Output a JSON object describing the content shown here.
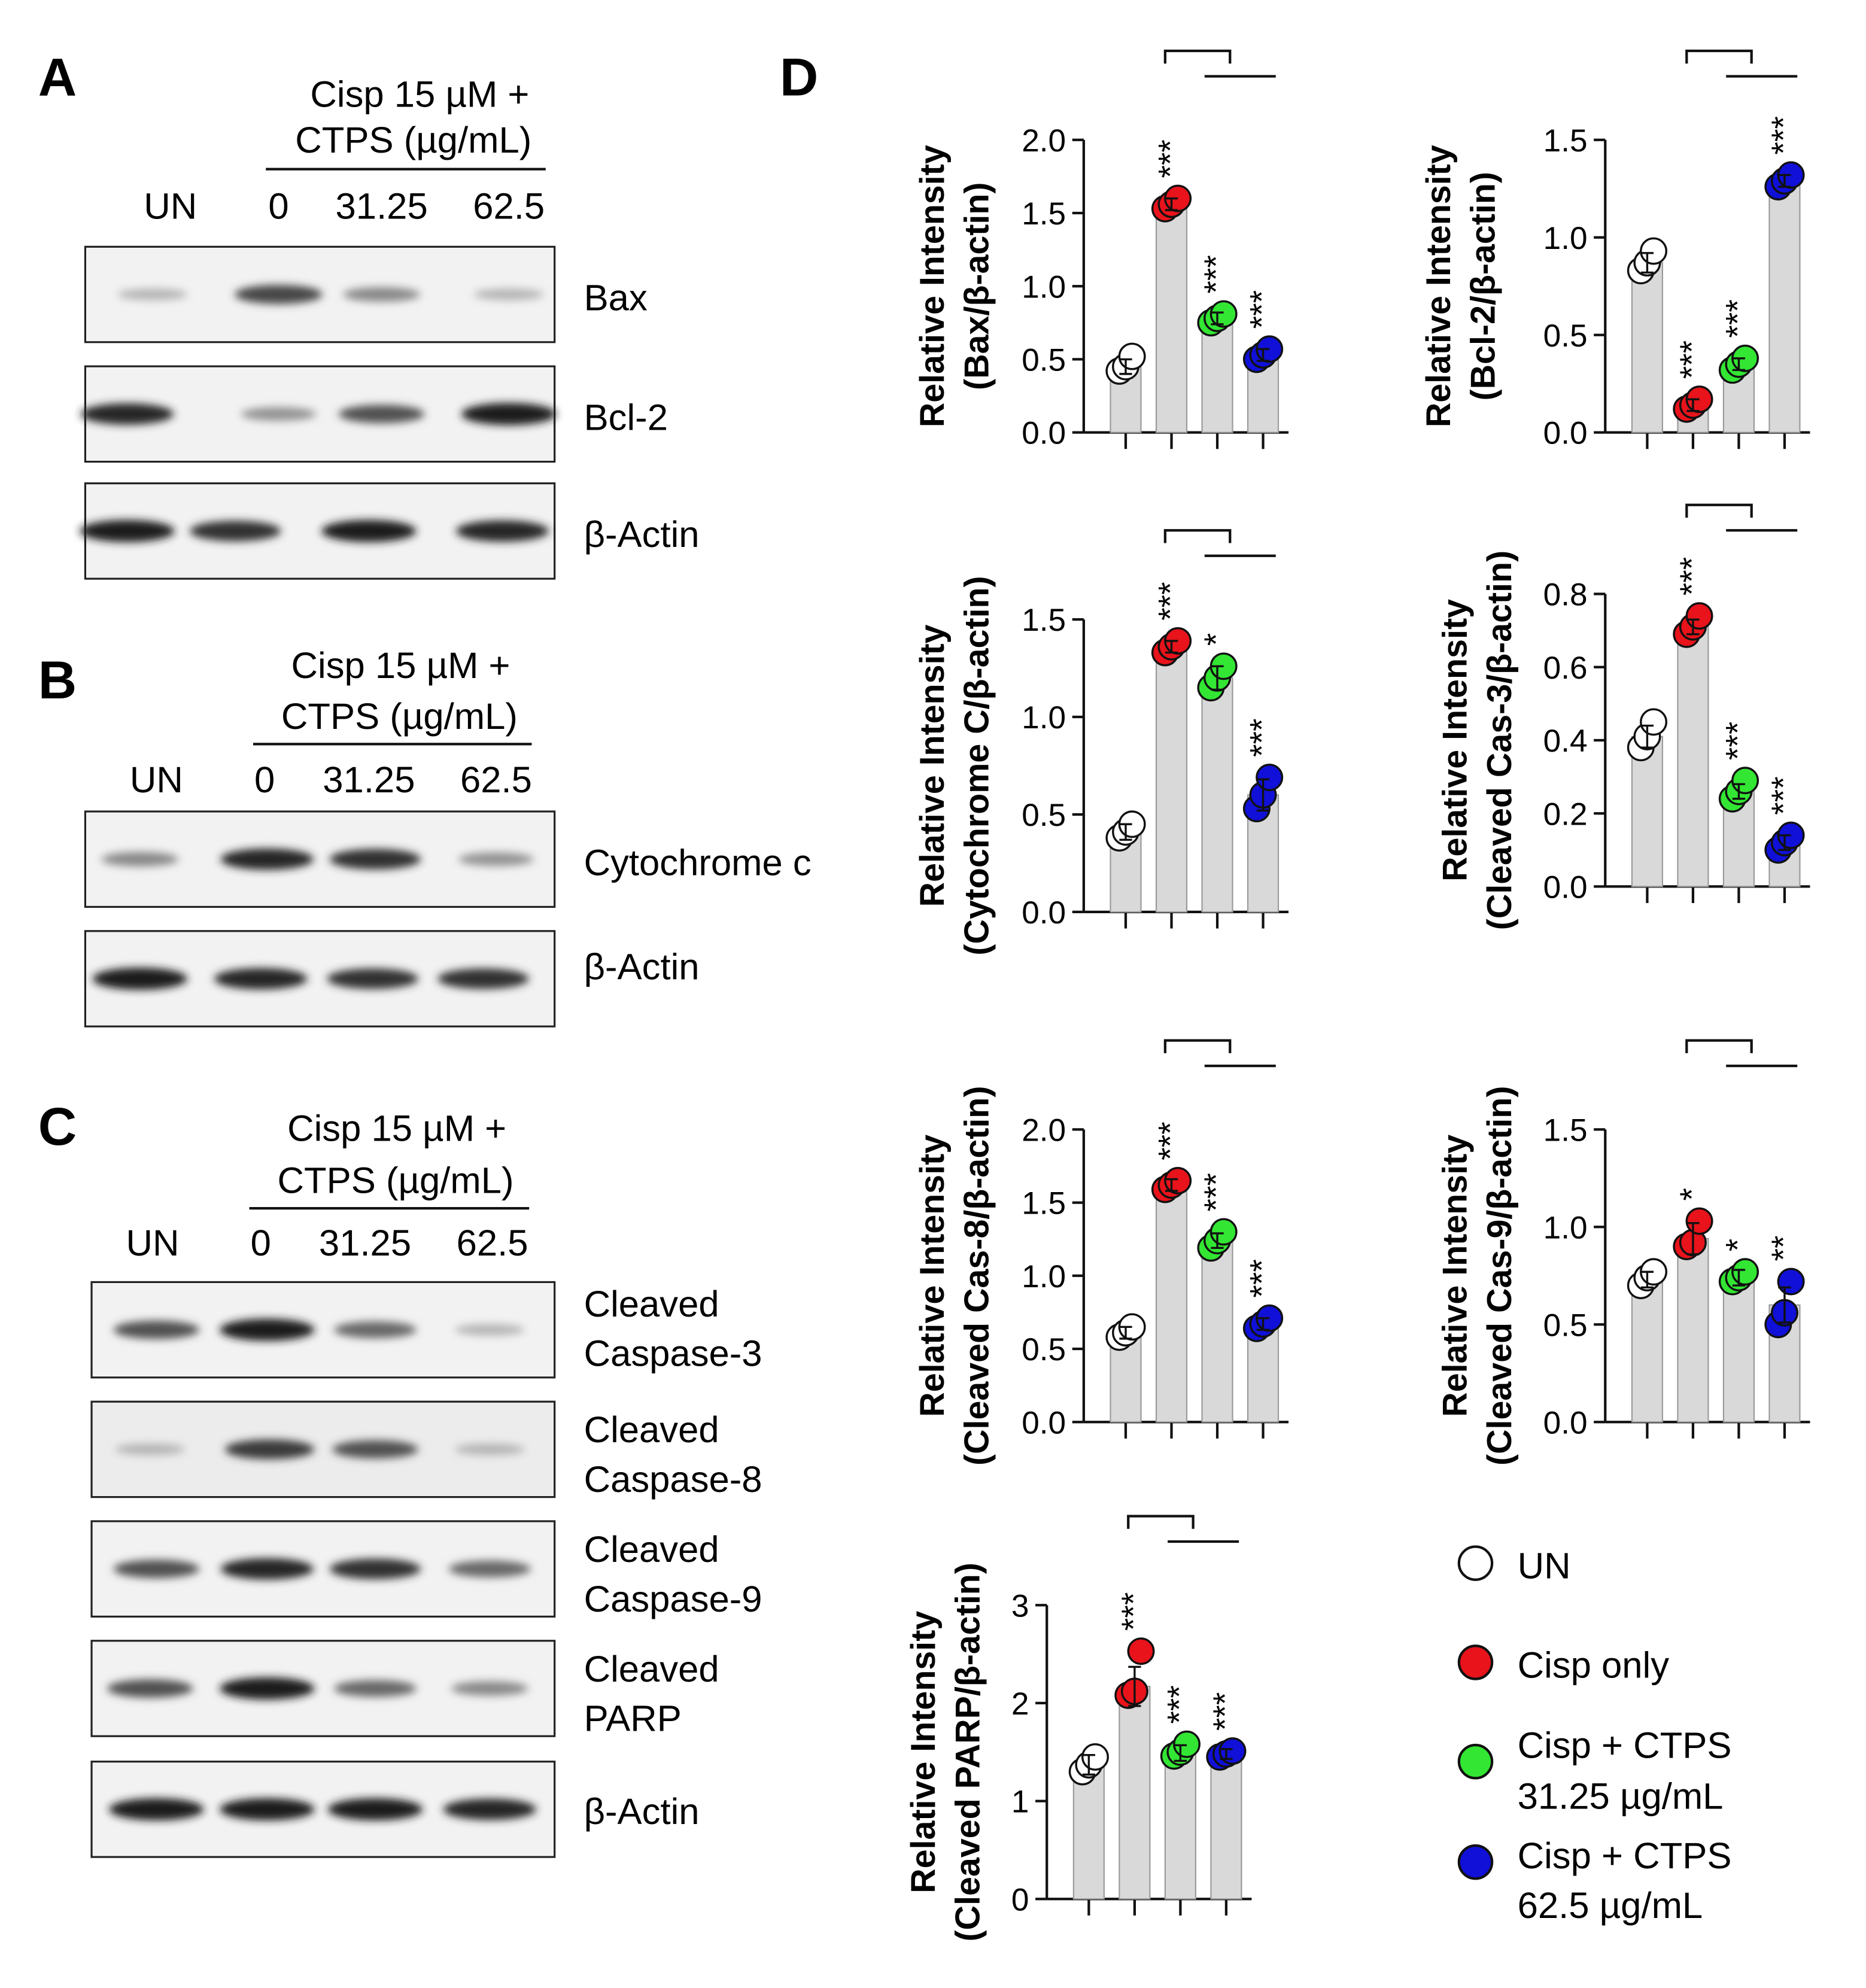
{
  "blots": {
    "panel_label_A": "A",
    "panel_label_B": "B",
    "panel_label_C": "C",
    "treatment_line1": "Cisp 15 µM +",
    "treatment_line2": "CTPS (µg/mL)",
    "lane_labels": [
      "UN",
      "0",
      "31.25",
      "62.5"
    ],
    "panel_A_bands": [
      {
        "label": "Bax",
        "intensities": [
          0.25,
          0.75,
          0.45,
          0.25
        ]
      },
      {
        "label": "Bcl-2",
        "intensities": [
          0.9,
          0.4,
          0.7,
          0.95
        ]
      },
      {
        "label": "β-Actin",
        "intensities": [
          0.95,
          0.85,
          0.95,
          0.9
        ]
      }
    ],
    "panel_B_bands": [
      {
        "label": "Cytochrome c",
        "intensities": [
          0.45,
          0.9,
          0.85,
          0.4
        ]
      },
      {
        "label": "β-Actin",
        "intensities": [
          0.95,
          0.9,
          0.85,
          0.85
        ]
      }
    ],
    "panel_C_bands": [
      {
        "label_line1": "Cleaved",
        "label_line2": "Caspase-3",
        "intensities": [
          0.7,
          0.95,
          0.6,
          0.25
        ]
      },
      {
        "label_line1": "Cleaved",
        "label_line2": "Caspase-8",
        "intensities": [
          0.25,
          0.8,
          0.7,
          0.25
        ]
      },
      {
        "label_line1": "Cleaved",
        "label_line2": "Caspase-9",
        "intensities": [
          0.7,
          0.9,
          0.85,
          0.6
        ]
      },
      {
        "label_line1": "Cleaved",
        "label_line2": "PARP",
        "intensities": [
          0.7,
          0.95,
          0.6,
          0.45
        ]
      },
      {
        "label_line1": "β-Actin",
        "label_line2": "",
        "intensities": [
          0.95,
          0.95,
          0.95,
          0.9
        ]
      }
    ]
  },
  "panel_D_label": "D",
  "colors": {
    "UN": "#ffffff",
    "Cisp only": "#e8131b",
    "Cisp + CTPS 31.25": "#33e633",
    "Cisp + CTPS 62.5": "#1010d8",
    "bar": "#d9d9d9"
  },
  "legend": [
    {
      "line1": "UN",
      "line2": "",
      "color": "#ffffff"
    },
    {
      "line1": "Cisp only",
      "line2": "",
      "color": "#e8131b"
    },
    {
      "line1": "Cisp + CTPS",
      "line2": "31.25 µg/mL",
      "color": "#33e633"
    },
    {
      "line1": "Cisp + CTPS",
      "line2": "62.5 µg/mL",
      "color": "#1010d8"
    }
  ],
  "chart_data": [
    {
      "type": "bar",
      "categories": [
        "UN",
        "Cisp only",
        "Cisp + CTPS 31.25 µg/mL",
        "Cisp + CTPS 62.5 µg/mL"
      ],
      "ylabel_line1": "Relative Intensity",
      "ylabel_line2": "(Bax/β-actin)",
      "ylim": [
        0,
        2.0
      ],
      "yticks": [
        "0.0",
        "0.5",
        "1.0",
        "1.5",
        "2.0"
      ],
      "values": [
        0.45,
        1.56,
        0.78,
        0.53
      ],
      "errors": [
        0.05,
        0.04,
        0.04,
        0.04
      ],
      "points": [
        [
          0.42,
          0.45,
          0.52
        ],
        [
          1.53,
          1.56,
          1.6
        ],
        [
          0.75,
          0.78,
          0.81
        ],
        [
          0.5,
          0.53,
          0.57
        ]
      ],
      "significance": [
        "",
        "***",
        "***",
        "***"
      ]
    },
    {
      "type": "bar",
      "categories": [
        "UN",
        "Cisp only",
        "Cisp + CTPS 31.25 µg/mL",
        "Cisp + CTPS 62.5 µg/mL"
      ],
      "ylabel_line1": "Relative Intensity",
      "ylabel_line2": "(Bcl-2/β-actin)",
      "ylim": [
        0,
        1.5
      ],
      "yticks": [
        "0.0",
        "0.5",
        "1.0",
        "1.5"
      ],
      "values": [
        0.87,
        0.14,
        0.35,
        1.29
      ],
      "errors": [
        0.05,
        0.03,
        0.03,
        0.03
      ],
      "points": [
        [
          0.83,
          0.87,
          0.93
        ],
        [
          0.12,
          0.14,
          0.17
        ],
        [
          0.32,
          0.35,
          0.38
        ],
        [
          1.26,
          1.29,
          1.32
        ]
      ],
      "significance": [
        "",
        "***",
        "***",
        "***"
      ]
    },
    {
      "type": "bar",
      "categories": [
        "UN",
        "Cisp only",
        "Cisp + CTPS 31.25 µg/mL",
        "Cisp + CTPS 62.5 µg/mL"
      ],
      "ylabel_line1": "Relative Intensity",
      "ylabel_line2": "(Cytochrome C/β-actin)",
      "ylim": [
        0,
        1.5
      ],
      "yticks": [
        "0.0",
        "0.5",
        "1.0",
        "1.5"
      ],
      "values": [
        0.41,
        1.36,
        1.2,
        0.6
      ],
      "errors": [
        0.04,
        0.03,
        0.06,
        0.08
      ],
      "points": [
        [
          0.38,
          0.41,
          0.45
        ],
        [
          1.33,
          1.36,
          1.39
        ],
        [
          1.15,
          1.2,
          1.26
        ],
        [
          0.53,
          0.6,
          0.69
        ]
      ],
      "significance": [
        "",
        "***",
        "*",
        "***"
      ]
    },
    {
      "type": "bar",
      "categories": [
        "UN",
        "Cisp only",
        "Cisp + CTPS 31.25 µg/mL",
        "Cisp + CTPS 62.5 µg/mL"
      ],
      "ylabel_line1": "Relative Intensity",
      "ylabel_line2": "(Cleaved Cas-3/β-actin)",
      "ylim": [
        0,
        0.8
      ],
      "yticks": [
        "0.0",
        "0.2",
        "0.4",
        "0.6",
        "0.8"
      ],
      "values": [
        0.41,
        0.71,
        0.26,
        0.12
      ],
      "errors": [
        0.03,
        0.02,
        0.02,
        0.02
      ],
      "points": [
        [
          0.38,
          0.41,
          0.45
        ],
        [
          0.69,
          0.71,
          0.74
        ],
        [
          0.24,
          0.26,
          0.29
        ],
        [
          0.1,
          0.12,
          0.14
        ]
      ],
      "significance": [
        "",
        "***",
        "***",
        "***"
      ]
    },
    {
      "type": "bar",
      "categories": [
        "UN",
        "Cisp only",
        "Cisp + CTPS 31.25 µg/mL",
        "Cisp + CTPS 62.5 µg/mL"
      ],
      "ylabel_line1": "Relative Intensity",
      "ylabel_line2": "(Cleaved Cas-8/β-actin)",
      "ylim": [
        0,
        2.0
      ],
      "yticks": [
        "0.0",
        "0.5",
        "1.0",
        "1.5",
        "2.0"
      ],
      "values": [
        0.61,
        1.62,
        1.24,
        0.67
      ],
      "errors": [
        0.04,
        0.04,
        0.05,
        0.04
      ],
      "points": [
        [
          0.58,
          0.61,
          0.65
        ],
        [
          1.59,
          1.62,
          1.65
        ],
        [
          1.19,
          1.24,
          1.3
        ],
        [
          0.64,
          0.67,
          0.71
        ]
      ],
      "significance": [
        "",
        "***",
        "***",
        "***"
      ]
    },
    {
      "type": "bar",
      "categories": [
        "UN",
        "Cisp only",
        "Cisp + CTPS 31.25 µg/mL",
        "Cisp + CTPS 62.5 µg/mL"
      ],
      "ylabel_line1": "Relative Intensity",
      "ylabel_line2": "(Cleaved Cas-9/β-actin)",
      "ylim": [
        0,
        1.5
      ],
      "yticks": [
        "0.0",
        "0.5",
        "1.0",
        "1.5"
      ],
      "values": [
        0.73,
        0.94,
        0.74,
        0.6
      ],
      "errors": [
        0.04,
        0.08,
        0.04,
        0.09
      ],
      "points": [
        [
          0.7,
          0.74,
          0.77
        ],
        [
          0.9,
          0.92,
          1.03
        ],
        [
          0.72,
          0.74,
          0.77
        ],
        [
          0.5,
          0.56,
          0.72
        ]
      ],
      "significance": [
        "",
        "*",
        "*",
        "**"
      ]
    },
    {
      "type": "bar",
      "categories": [
        "UN",
        "Cisp only",
        "Cisp + CTPS 31.25 µg/mL",
        "Cisp + CTPS 62.5 µg/mL"
      ],
      "ylabel_line1": "Relative Intensity",
      "ylabel_line2": "(Cleaved PARP/β-actin)",
      "ylim": [
        0,
        3
      ],
      "yticks": [
        "0",
        "1",
        "2",
        "3"
      ],
      "values": [
        1.37,
        2.17,
        1.49,
        1.48
      ],
      "errors": [
        0.1,
        0.2,
        0.08,
        0.05
      ],
      "points": [
        [
          1.3,
          1.37,
          1.45
        ],
        [
          2.08,
          2.12,
          2.53
        ],
        [
          1.46,
          1.5,
          1.58
        ],
        [
          1.45,
          1.48,
          1.51
        ]
      ],
      "significance": [
        "",
        "***",
        "***",
        "***"
      ]
    }
  ]
}
